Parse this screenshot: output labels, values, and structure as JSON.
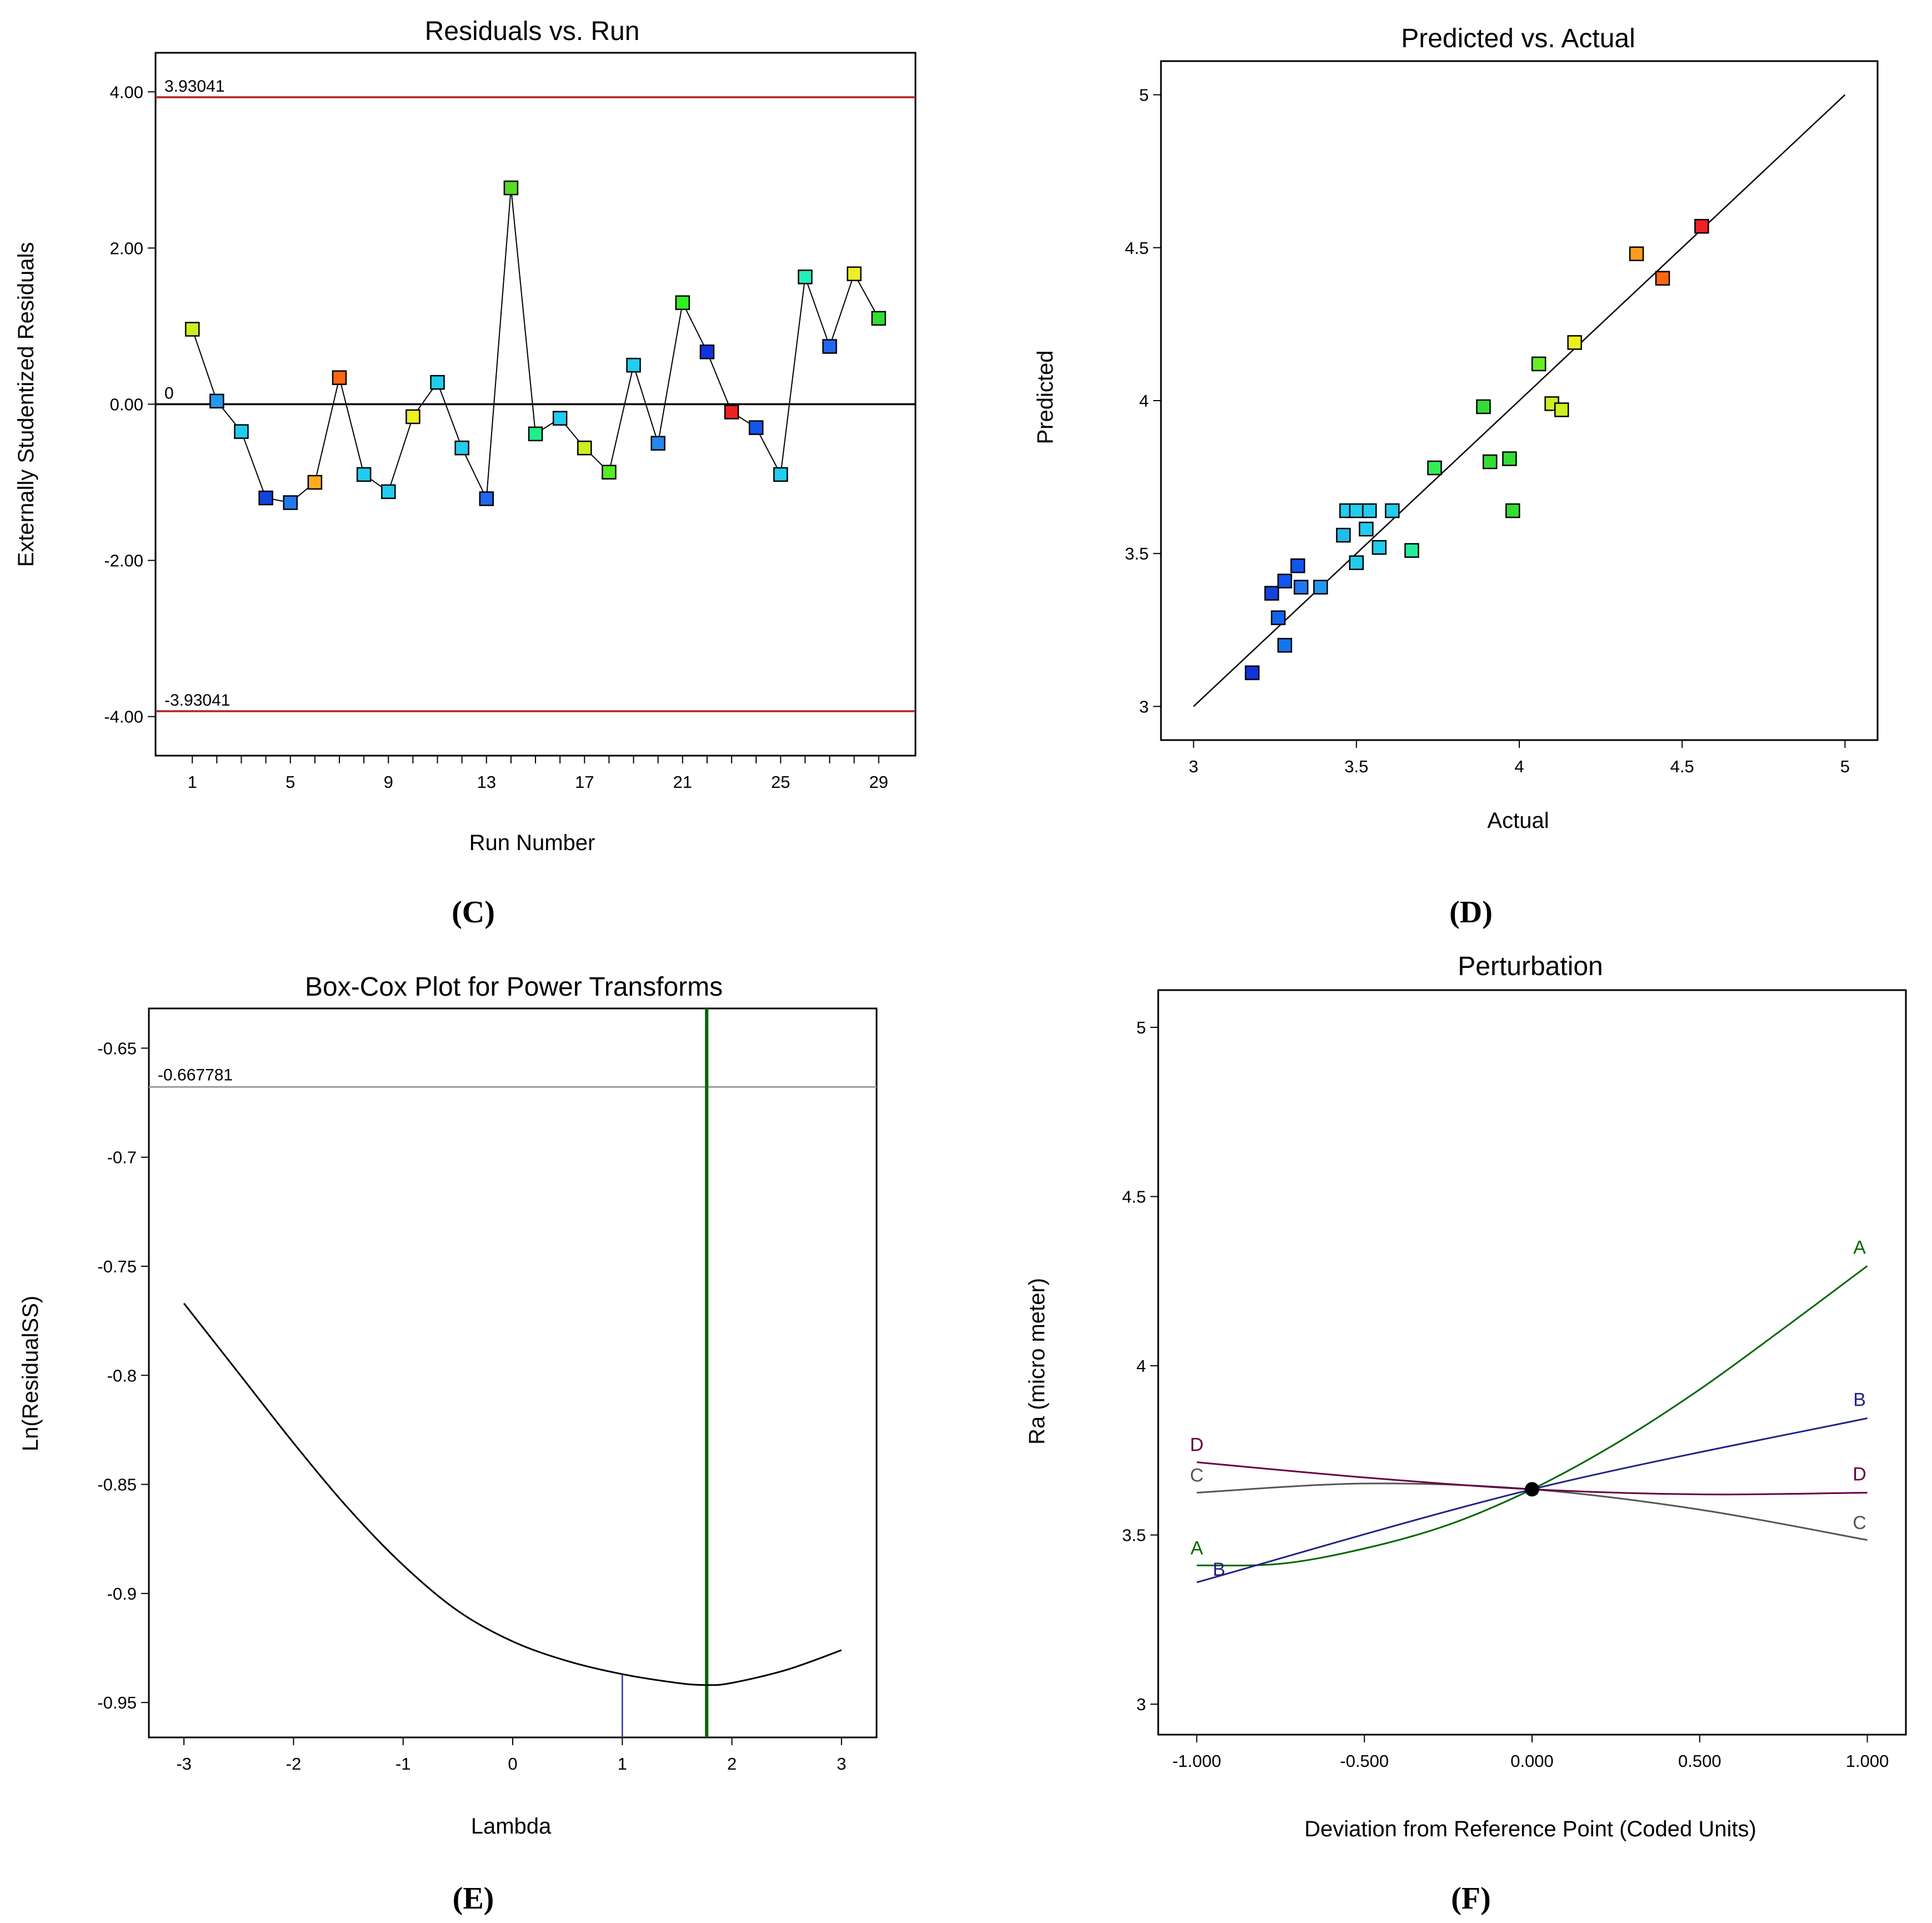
{
  "chart_data": [
    {
      "id": "C",
      "type": "line",
      "panel_label": "(C)",
      "title": "Residuals vs. Run",
      "xlabel": "Run Number",
      "ylabel": "Externally Studentized Residuals",
      "xlim": [
        -0.5,
        30.5
      ],
      "ylim": [
        -4.5,
        4.5
      ],
      "x_ticks": [
        1,
        5,
        9,
        13,
        17,
        21,
        25,
        29
      ],
      "x_minor_ticks": [
        1,
        2,
        3,
        4,
        5,
        6,
        7,
        8,
        9,
        10,
        11,
        12,
        13,
        14,
        15,
        16,
        17,
        18,
        19,
        20,
        21,
        22,
        23,
        24,
        25,
        26,
        27,
        28,
        29
      ],
      "y_ticks": [
        -4,
        -2,
        0,
        2,
        4
      ],
      "y_tick_labels": [
        "-4.00",
        "-2.00",
        "0.00",
        "2.00",
        "4.00"
      ],
      "ref_lines": [
        {
          "value": 3.93041,
          "label": "3.93041",
          "color": "#b22222"
        },
        {
          "value": 0,
          "label": "0",
          "color": "#000000"
        },
        {
          "value": -3.93041,
          "label": "-3.93041",
          "color": "#b22222"
        }
      ],
      "points": [
        {
          "run": 1,
          "value": 0.96,
          "color": "#ccee22"
        },
        {
          "run": 2,
          "value": 0.04,
          "color": "#2299ee"
        },
        {
          "run": 3,
          "value": -0.35,
          "color": "#22ccee"
        },
        {
          "run": 4,
          "value": -1.2,
          "color": "#1144dd"
        },
        {
          "run": 5,
          "value": -1.26,
          "color": "#2277ee"
        },
        {
          "run": 6,
          "value": -1.0,
          "color": "#ffaa22"
        },
        {
          "run": 7,
          "value": 0.34,
          "color": "#ff6611"
        },
        {
          "run": 8,
          "value": -0.9,
          "color": "#22ccee"
        },
        {
          "run": 9,
          "value": -1.12,
          "color": "#22ccee"
        },
        {
          "run": 10,
          "value": -0.16,
          "color": "#eeee22"
        },
        {
          "run": 11,
          "value": 0.28,
          "color": "#22ccee"
        },
        {
          "run": 12,
          "value": -0.56,
          "color": "#22ccee"
        },
        {
          "run": 13,
          "value": -1.21,
          "color": "#2266ee"
        },
        {
          "run": 14,
          "value": 2.77,
          "color": "#55dd22"
        },
        {
          "run": 15,
          "value": -0.38,
          "color": "#22ee88"
        },
        {
          "run": 16,
          "value": -0.18,
          "color": "#22ccee"
        },
        {
          "run": 17,
          "value": -0.56,
          "color": "#ccee22"
        },
        {
          "run": 18,
          "value": -0.87,
          "color": "#55ee22"
        },
        {
          "run": 19,
          "value": 0.5,
          "color": "#22ccee"
        },
        {
          "run": 20,
          "value": -0.5,
          "color": "#2288ee"
        },
        {
          "run": 21,
          "value": 1.3,
          "color": "#33ee22"
        },
        {
          "run": 22,
          "value": 0.67,
          "color": "#1133dd"
        },
        {
          "run": 23,
          "value": -0.1,
          "color": "#ee2222"
        },
        {
          "run": 24,
          "value": -0.3,
          "color": "#1155ee"
        },
        {
          "run": 25,
          "value": -0.9,
          "color": "#22ccee"
        },
        {
          "run": 26,
          "value": 1.63,
          "color": "#22eebb"
        },
        {
          "run": 27,
          "value": 0.74,
          "color": "#2266ee"
        },
        {
          "run": 28,
          "value": 1.67,
          "color": "#eeee22"
        },
        {
          "run": 29,
          "value": 1.1,
          "color": "#33dd33"
        }
      ]
    },
    {
      "id": "D",
      "type": "scatter",
      "panel_label": "(D)",
      "title": "Predicted vs. Actual",
      "xlabel": "Actual",
      "ylabel": "Predicted",
      "xlim": [
        2.9,
        5.1
      ],
      "ylim": [
        2.89,
        5.11
      ],
      "x_ticks": [
        3,
        3.5,
        4,
        4.5,
        5
      ],
      "x_tick_labels": [
        "3",
        "3.5",
        "4",
        "4.5",
        "5"
      ],
      "y_ticks": [
        3,
        3.5,
        4,
        4.5,
        5
      ],
      "y_tick_labels": [
        "3",
        "3.5",
        "4",
        "4.5",
        "5"
      ],
      "reference_line": [
        [
          3,
          3
        ],
        [
          5,
          5
        ]
      ],
      "points": [
        {
          "x": 3.18,
          "y": 3.11,
          "color": "#1133dd"
        },
        {
          "x": 3.24,
          "y": 3.37,
          "color": "#1144dd"
        },
        {
          "x": 3.28,
          "y": 3.41,
          "color": "#1155ee"
        },
        {
          "x": 3.26,
          "y": 3.29,
          "color": "#1166ee"
        },
        {
          "x": 3.28,
          "y": 3.2,
          "color": "#1177ee"
        },
        {
          "x": 3.32,
          "y": 3.46,
          "color": "#1155ee"
        },
        {
          "x": 3.33,
          "y": 3.39,
          "color": "#2277ee"
        },
        {
          "x": 3.39,
          "y": 3.39,
          "color": "#2299ee"
        },
        {
          "x": 3.46,
          "y": 3.56,
          "color": "#22bbee"
        },
        {
          "x": 3.47,
          "y": 3.64,
          "color": "#22ccee"
        },
        {
          "x": 3.5,
          "y": 3.64,
          "color": "#22ccee"
        },
        {
          "x": 3.5,
          "y": 3.47,
          "color": "#22ccee"
        },
        {
          "x": 3.53,
          "y": 3.58,
          "color": "#22ccee"
        },
        {
          "x": 3.54,
          "y": 3.64,
          "color": "#22ccee"
        },
        {
          "x": 3.57,
          "y": 3.52,
          "color": "#22ccee"
        },
        {
          "x": 3.61,
          "y": 3.64,
          "color": "#22ccee"
        },
        {
          "x": 3.67,
          "y": 3.51,
          "color": "#22ee99"
        },
        {
          "x": 3.74,
          "y": 3.78,
          "color": "#33ee55"
        },
        {
          "x": 3.89,
          "y": 3.98,
          "color": "#33dd33"
        },
        {
          "x": 3.91,
          "y": 3.8,
          "color": "#33dd33"
        },
        {
          "x": 3.97,
          "y": 3.81,
          "color": "#33dd33"
        },
        {
          "x": 3.98,
          "y": 3.64,
          "color": "#33dd33"
        },
        {
          "x": 4.06,
          "y": 4.12,
          "color": "#66ee22"
        },
        {
          "x": 4.1,
          "y": 3.99,
          "color": "#ccee22"
        },
        {
          "x": 4.13,
          "y": 3.97,
          "color": "#ccee22"
        },
        {
          "x": 4.17,
          "y": 4.19,
          "color": "#eeee22"
        },
        {
          "x": 4.36,
          "y": 4.48,
          "color": "#ff9922"
        },
        {
          "x": 4.44,
          "y": 4.4,
          "color": "#ff6611"
        },
        {
          "x": 4.56,
          "y": 4.57,
          "color": "#ee2222"
        }
      ]
    },
    {
      "id": "E",
      "type": "line",
      "panel_label": "(E)",
      "title": "Box-Cox Plot for Power Transforms",
      "xlabel": "Lambda",
      "ylabel": "Ln(ResidualSS)",
      "xlim": [
        -3.32,
        3.32
      ],
      "ylim": [
        -0.966,
        -0.6318
      ],
      "x_ticks": [
        -3,
        -2,
        -1,
        0,
        1,
        2,
        3
      ],
      "x_tick_labels": [
        "-3",
        "-2",
        "-1",
        "0",
        "1",
        "2",
        "3"
      ],
      "y_ticks": [
        -0.95,
        -0.9,
        -0.85,
        -0.8,
        -0.75,
        -0.7,
        -0.65
      ],
      "y_tick_labels": [
        "-0.95",
        "-0.9",
        "-0.85",
        "-0.8",
        "-0.75",
        "-0.7",
        "-0.65"
      ],
      "ci_line": {
        "value": -0.667781,
        "label": "-0.667781",
        "color": "#999999"
      },
      "current_lambda": {
        "value": 1,
        "color": "#3333aa"
      },
      "best_lambda": {
        "value": 1.77,
        "color": "#006600"
      },
      "curve": {
        "x": [
          -3,
          -2.5,
          -2,
          -1.5,
          -1,
          -0.5,
          0,
          0.5,
          1,
          1.5,
          1.77,
          2,
          2.5,
          3
        ],
        "y": [
          -0.767,
          -0.799,
          -0.831,
          -0.861,
          -0.887,
          -0.908,
          -0.922,
          -0.931,
          -0.937,
          -0.941,
          -0.942,
          -0.941,
          -0.935,
          -0.926
        ]
      }
    },
    {
      "id": "F",
      "type": "line",
      "panel_label": "(F)",
      "title": "Perturbation",
      "xlabel": "Deviation from Reference Point (Coded Units)",
      "ylabel": "Ra (micro meter)",
      "xlim": [
        -1.115,
        1.115
      ],
      "ylim": [
        2.91,
        5.11
      ],
      "x_ticks": [
        -1,
        -0.5,
        0,
        0.5,
        1
      ],
      "x_tick_labels": [
        "-1.000",
        "-0.500",
        "0.000",
        "0.500",
        "1.000"
      ],
      "y_ticks": [
        3,
        3.5,
        4,
        4.5,
        5
      ],
      "y_tick_labels": [
        "3",
        "3.5",
        "4",
        "4.5",
        "5"
      ],
      "reference_point": {
        "x": 0,
        "y": 3.635
      },
      "series": [
        {
          "name": "A",
          "color": "#006600",
          "x": [
            -1,
            -0.75,
            -0.5,
            -0.25,
            0,
            0.25,
            0.5,
            0.75,
            1
          ],
          "y": [
            3.41,
            3.415,
            3.46,
            3.53,
            3.635,
            3.77,
            3.93,
            4.11,
            4.295
          ]
        },
        {
          "name": "B",
          "color": "#222288",
          "x": [
            -1,
            0,
            1
          ],
          "y": [
            3.36,
            3.635,
            3.845
          ]
        },
        {
          "name": "C",
          "color": "#555555",
          "x": [
            -1,
            -0.5,
            0,
            0.5,
            1
          ],
          "y": [
            3.625,
            3.652,
            3.635,
            3.575,
            3.485
          ]
        },
        {
          "name": "D",
          "color": "#660044",
          "x": [
            -1,
            -0.5,
            0,
            0.5,
            1
          ],
          "y": [
            3.715,
            3.67,
            3.635,
            3.62,
            3.625
          ]
        }
      ]
    }
  ]
}
